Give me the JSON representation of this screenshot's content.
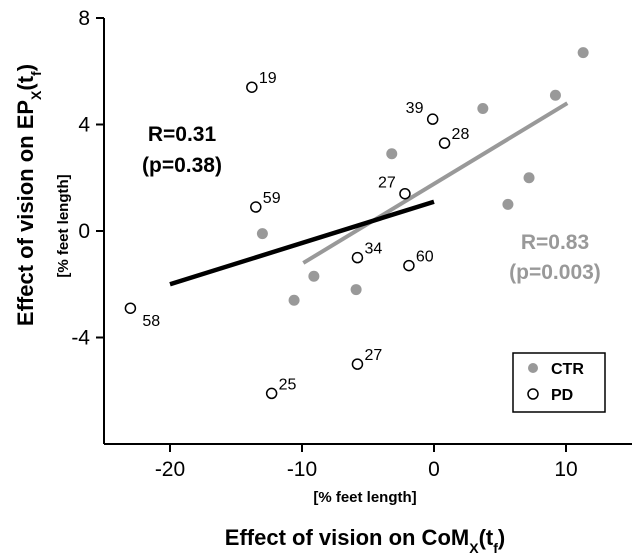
{
  "chart_data": {
    "type": "scatter",
    "xlabel": "Effect of vision on CoM",
    "xlabel_sub": "X",
    "xlabel_arg": "(t",
    "xlabel_arg_sub": "f",
    "xlabel_end": ")",
    "xunit": "[% feet length]",
    "ylabel": "Effect of vision on EP",
    "ylabel_sub": "X",
    "ylabel_arg": "(t",
    "ylabel_arg_sub": "f",
    "ylabel_end": ")",
    "yunit": "[% feet length]",
    "xlim": [
      -25,
      15
    ],
    "ylim": [
      -8,
      8
    ],
    "xticks": [
      -20,
      -10,
      0,
      10
    ],
    "yticks": [
      8,
      4,
      0,
      -4
    ],
    "legend_position": "bottom-right",
    "series": [
      {
        "name": "CTR",
        "marker": "filled",
        "color": "#999999",
        "points": [
          {
            "x": -13.0,
            "y": -0.1
          },
          {
            "x": -10.6,
            "y": -2.6
          },
          {
            "x": -9.1,
            "y": -1.7
          },
          {
            "x": -5.9,
            "y": -2.2
          },
          {
            "x": -3.2,
            "y": 2.9
          },
          {
            "x": 3.7,
            "y": 4.6
          },
          {
            "x": 5.6,
            "y": 1.0
          },
          {
            "x": 7.2,
            "y": 2.0
          },
          {
            "x": 9.2,
            "y": 5.1
          },
          {
            "x": 11.3,
            "y": 6.7
          }
        ],
        "fit": {
          "x": [
            -9.9,
            10.1
          ],
          "y": [
            -1.2,
            4.8
          ]
        },
        "stat_r": "R=0.83",
        "stat_p": "(p=0.003)"
      },
      {
        "name": "PD",
        "marker": "open",
        "color": "#000000",
        "points": [
          {
            "x": -13.8,
            "y": 5.4,
            "label": "19"
          },
          {
            "x": -13.5,
            "y": 0.9,
            "label": "59"
          },
          {
            "x": -23.0,
            "y": -2.9,
            "label": "58"
          },
          {
            "x": -12.3,
            "y": -6.1,
            "label": "25"
          },
          {
            "x": -5.8,
            "y": -5.0,
            "label": "27"
          },
          {
            "x": -5.8,
            "y": -1.0,
            "label": "34"
          },
          {
            "x": -2.2,
            "y": 1.4,
            "label": "27"
          },
          {
            "x": -1.9,
            "y": -1.3,
            "label": "60"
          },
          {
            "x": -0.1,
            "y": 4.2,
            "label": "39"
          },
          {
            "x": 0.8,
            "y": 3.3,
            "label": "28"
          }
        ],
        "fit": {
          "x": [
            -20.0,
            0.0
          ],
          "y": [
            -2.0,
            1.1
          ]
        },
        "stat_r": "R=0.31",
        "stat_p": "(p=0.38)"
      }
    ]
  }
}
